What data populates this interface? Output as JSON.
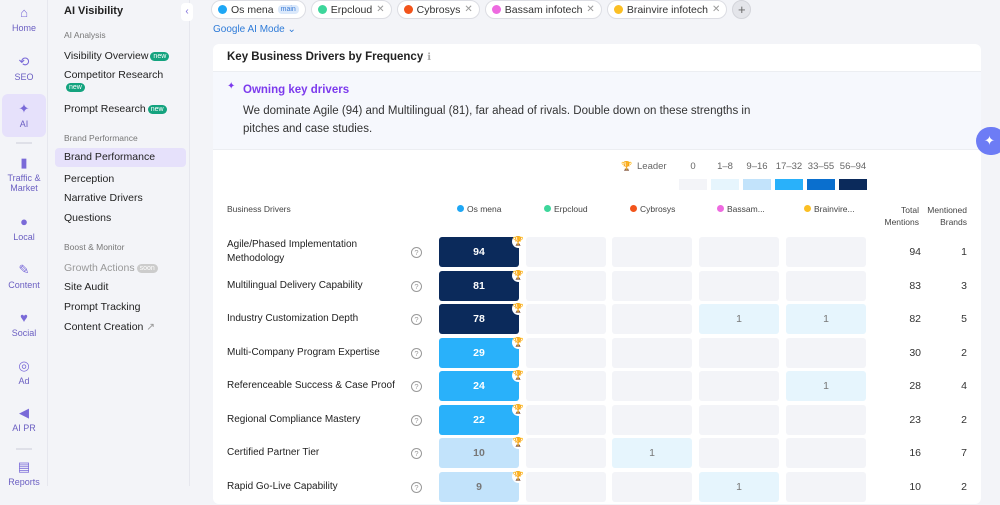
{
  "rail": [
    {
      "label": "Home",
      "icon": "home-icon",
      "g": "⌂"
    },
    {
      "label": "SEO",
      "icon": "seo-icon",
      "g": "⟲"
    },
    {
      "label": "AI",
      "icon": "ai-sparkle-icon",
      "g": "✦",
      "active": true
    },
    {
      "label": "Traffic & Market",
      "icon": "bar-chart-icon",
      "g": "▮"
    },
    {
      "label": "Local",
      "icon": "map-pin-icon",
      "g": "●"
    },
    {
      "label": "Content",
      "icon": "pen-icon",
      "g": "✎"
    },
    {
      "label": "Social",
      "icon": "heart-icon",
      "g": "♥"
    },
    {
      "label": "Ad",
      "icon": "cursor-target-icon",
      "g": "◎"
    },
    {
      "label": "AI PR",
      "icon": "megaphone-icon",
      "g": "◀"
    },
    {
      "label": "Reports",
      "icon": "report-icon",
      "g": "▤"
    }
  ],
  "sidebar": {
    "title": "AI Visibility",
    "sections": [
      {
        "label": "AI Analysis",
        "items": [
          {
            "label": "Visibility Overview",
            "badge": "new"
          },
          {
            "label": "Competitor Research",
            "badge": "new"
          },
          {
            "label": "Prompt Research",
            "badge": "new"
          }
        ]
      },
      {
        "label": "Brand Performance",
        "items": [
          {
            "label": "Brand Performance",
            "selected": true
          },
          {
            "label": "Perception"
          },
          {
            "label": "Narrative Drivers"
          },
          {
            "label": "Questions"
          }
        ]
      },
      {
        "label": "Boost & Monitor",
        "items": [
          {
            "label": "Growth Actions",
            "badge": "soon"
          },
          {
            "label": "Site Audit"
          },
          {
            "label": "Prompt Tracking"
          },
          {
            "label": "Content Creation"
          }
        ]
      }
    ]
  },
  "brands": [
    {
      "name": "Os mena",
      "color": "#1ea7f5",
      "tag": "main",
      "short": "Os mena"
    },
    {
      "name": "Erpcloud",
      "color": "#3dd69b",
      "short": "Erpcloud"
    },
    {
      "name": "Cybrosys",
      "color": "#f2541b",
      "short": "Cybrosys"
    },
    {
      "name": "Bassam infotech",
      "color": "#ee6ae0",
      "short": "Bassam..."
    },
    {
      "name": "Brainvire infotech",
      "color": "#fbbf24",
      "short": "Brainvire..."
    }
  ],
  "mode": "Google AI Mode",
  "card": {
    "title": "Key Business Drivers by Frequency",
    "insight_title": "Owning key drivers",
    "insight_text": "We dominate Agile (94) and Multilingual (81), far ahead of rivals. Double down on these strengths in pitches and case studies."
  },
  "legend": {
    "leader": "Leader",
    "bins": [
      {
        "label": "0",
        "color": "#f3f4f8"
      },
      {
        "label": "1–8",
        "color": "#e6f5fd"
      },
      {
        "label": "9–16",
        "color": "#c2e3fb"
      },
      {
        "label": "17–32",
        "color": "#29b1fa"
      },
      {
        "label": "33–55",
        "color": "#0a6fce"
      },
      {
        "label": "56–94",
        "color": "#0b2a5b"
      }
    ]
  },
  "columns": {
    "driver": "Business Drivers",
    "total": "Total Mentions",
    "mentioned": "Mentioned Brands"
  },
  "rows": [
    {
      "driver": "Agile/Phased Implementation Methodology",
      "values": [
        94,
        0,
        0,
        0,
        0
      ],
      "total": 94,
      "brands": 1
    },
    {
      "driver": "Multilingual Delivery Capability",
      "values": [
        81,
        0,
        0,
        0,
        0
      ],
      "total": 83,
      "brands": 3
    },
    {
      "driver": "Industry Customization Depth",
      "values": [
        78,
        0,
        0,
        1,
        1
      ],
      "total": 82,
      "brands": 5
    },
    {
      "driver": "Multi-Company Program Expertise",
      "values": [
        29,
        0,
        0,
        0,
        0
      ],
      "total": 30,
      "brands": 2
    },
    {
      "driver": "Referenceable Success & Case Proof",
      "values": [
        24,
        0,
        0,
        0,
        1
      ],
      "total": 28,
      "brands": 4
    },
    {
      "driver": "Regional Compliance Mastery",
      "values": [
        22,
        0,
        0,
        0,
        0
      ],
      "total": 23,
      "brands": 2
    },
    {
      "driver": "Certified Partner Tier",
      "values": [
        10,
        0,
        1,
        0,
        0
      ],
      "total": 16,
      "brands": 7
    },
    {
      "driver": "Rapid Go-Live Capability",
      "values": [
        9,
        0,
        0,
        1,
        0
      ],
      "total": 10,
      "brands": 2
    }
  ]
}
